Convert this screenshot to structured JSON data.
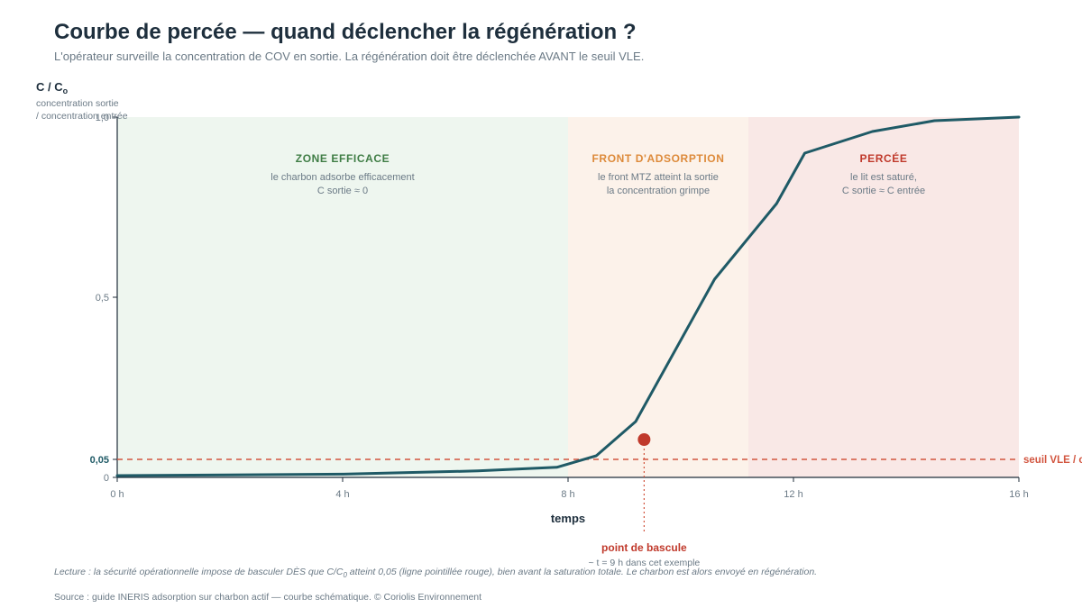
{
  "title": "Courbe de percée — quand déclencher la régénération ?",
  "subtitle": "L'opérateur surveille la concentration de COV en sortie. La régénération doit être déclenchée AVANT le seuil VLE.",
  "footnote": {
    "before": "Lecture : la sécurité opérationnelle impose de basculer DÈS que C/C",
    "sub": "0",
    "after": " atteint 0,05 (ligne pointillée rouge), bien avant la saturation totale. Le charbon est alors envoyé en régénération."
  },
  "source": "Source : guide INERIS adsorption sur charbon actif — courbe schématique. © Coriolis Environnement",
  "colors": {
    "curve": "#1f5a66",
    "threshold": "#d2553f",
    "zone_efficace_bg": "#eef6ef",
    "zone_front_bg": "#fcf2ea",
    "zone_percee_bg": "#f9e8e6",
    "zone_efficace_title": "#3f7d45",
    "zone_front_title": "#dd8a3a",
    "zone_percee_title": "#c0392b",
    "marker": "#c0392b"
  },
  "chart_data": {
    "type": "line",
    "title": "Courbe de percée — quand déclencher la régénération ?",
    "xlabel": "temps",
    "ylabel": "C / C0",
    "ylabel_main": "C / C",
    "ylabel_sub": "o",
    "ylabel_desc": [
      "concentration sortie",
      "/ concentration entrée"
    ],
    "xlim": [
      0,
      16
    ],
    "ylim": [
      0,
      1
    ],
    "x_ticks": [
      0,
      4,
      8,
      12,
      16
    ],
    "x_tick_labels": [
      "0 h",
      "4 h",
      "8 h",
      "12 h",
      "16 h"
    ],
    "y_ticks": [
      0,
      0.05,
      0.5,
      1.0
    ],
    "y_tick_labels": [
      "0",
      "0,05",
      "0,5",
      "1,0"
    ],
    "grid": false,
    "series": [
      {
        "x": [
          0,
          2,
          4,
          6.4,
          7.8,
          8.5,
          9.2,
          10.6,
          11.7,
          12.2,
          13.4,
          14.5,
          16
        ],
        "y": [
          0.005,
          0.007,
          0.009,
          0.018,
          0.028,
          0.06,
          0.155,
          0.55,
          0.76,
          0.9,
          0.96,
          0.99,
          1.0
        ]
      }
    ],
    "zones": [
      {
        "x0": 0,
        "x1": 8,
        "title": "ZONE EFFICACE",
        "lines": [
          "le charbon adsorbe efficacement",
          "C sortie ≈ 0"
        ],
        "bg": "zone_efficace_bg",
        "fg": "zone_efficace_title"
      },
      {
        "x0": 8,
        "x1": 11.2,
        "title": "FRONT D'ADSORPTION",
        "lines": [
          "le front MTZ atteint la sortie",
          "la concentration grimpe"
        ],
        "bg": "zone_front_bg",
        "fg": "zone_front_title"
      },
      {
        "x0": 11.2,
        "x1": 16,
        "title": "PERCÉE",
        "lines": [
          "le lit est saturé,",
          "C sortie ≈ C entrée"
        ],
        "bg": "zone_percee_bg",
        "fg": "zone_percee_title"
      }
    ],
    "threshold": {
      "y": 0.05,
      "label": "seuil VLE / consigne"
    },
    "annotation": {
      "x": 9.35,
      "y": 0.105,
      "label": "point de bascule",
      "sublabel": "~ t = 9 h dans cet exemple"
    }
  }
}
